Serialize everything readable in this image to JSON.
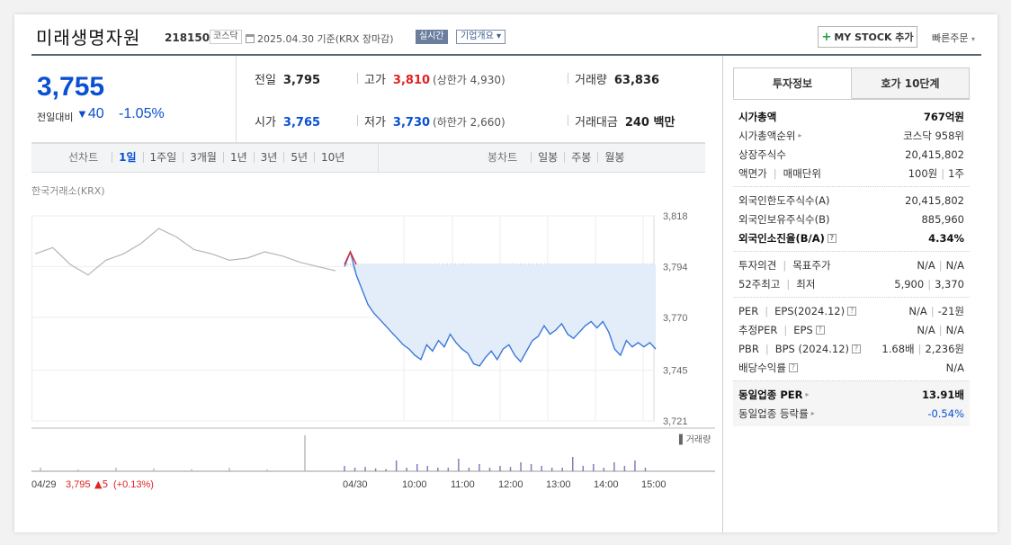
{
  "header": {
    "company": "미래생명자원",
    "code": "218150",
    "market_badge": "코스닥",
    "date_text": "2025.04.30 기준(KRX 장마감)",
    "realtime_badge": "실시간",
    "overview_button": "기업개요",
    "mystock_button": "MY STOCK 추가",
    "quick_order": "빠른주문"
  },
  "summary": {
    "price": "3,755",
    "change_label": "전일대비",
    "change": "40",
    "change_rate": "-1.05%",
    "prev_label": "전일",
    "prev": "3,795",
    "high_label": "고가",
    "high": "3,810",
    "upper_limit": "(상한가 4,930)",
    "volume_label": "거래량",
    "volume": "63,836",
    "open_label": "시가",
    "open": "3,765",
    "low_label": "저가",
    "low": "3,730",
    "lower_limit": "(하한가 2,660)",
    "amount_label": "거래대금",
    "amount": "240 백만"
  },
  "tabs": {
    "line_title": "선차트",
    "line_tabs": [
      "1일",
      "1주일",
      "3개월",
      "1년",
      "3년",
      "5년",
      "10년"
    ],
    "candle_title": "봉차트",
    "candle_tabs": [
      "일봉",
      "주봉",
      "월봉"
    ]
  },
  "chart": {
    "source": "한국거래소(KRX)",
    "volume_label": "거래량",
    "prev_day_label": "04/29",
    "prev_day_price": "3,795",
    "prev_day_change": "▲5",
    "prev_day_rate": "(+0.13%)"
  },
  "chart_data": {
    "type": "line",
    "reference_price": 3795,
    "ylim": [
      3721,
      3818
    ],
    "y_ticks": [
      "3,818",
      "3,794",
      "3,770",
      "3,745",
      "3,721"
    ],
    "x_ticks": [
      "04/29",
      "04/30",
      "10:00",
      "11:00",
      "12:00",
      "13:00",
      "14:00",
      "15:00"
    ],
    "colors": {
      "up": "#e02222",
      "down": "#3a78d8",
      "prev_day": "#b5b5b5",
      "fill": "#e3ecf9"
    },
    "series": [
      {
        "values": [
          3800,
          3803,
          3795,
          3790,
          3797,
          3800,
          3805,
          3812,
          3808,
          3802,
          3800,
          3797,
          3798,
          3801,
          3799,
          3796,
          3794,
          3792
        ]
      },
      {
        "values": [
          3794,
          3801,
          3790,
          3783,
          3776,
          3772,
          3769,
          3766,
          3763,
          3760,
          3757,
          3755,
          3752,
          3750,
          3757,
          3754,
          3759,
          3756,
          3762,
          3758,
          3755,
          3753,
          3748,
          3747,
          3751,
          3754,
          3750,
          3755,
          3757,
          3752,
          3749,
          3754,
          3759,
          3761,
          3766,
          3762,
          3764,
          3767,
          3762,
          3760,
          3763,
          3766,
          3768,
          3765,
          3768,
          3763,
          3755,
          3752,
          3759,
          3756,
          3758,
          3756,
          3758,
          3755
        ]
      }
    ],
    "volume": [
      0.1,
      0.05,
      0.1,
      0.08,
      0.06,
      0.1,
      0.05,
      1.0,
      0.15,
      0.1,
      0.12,
      0.08,
      0.06,
      0.3,
      0.1,
      0.2,
      0.15,
      0.1,
      0.1,
      0.35,
      0.1,
      0.2,
      0.1,
      0.15,
      0.12,
      0.25,
      0.2,
      0.15,
      0.1,
      0.1,
      0.4,
      0.15,
      0.2,
      0.1,
      0.25,
      0.15,
      0.3,
      0.1
    ]
  },
  "info": {
    "tabs": [
      "투자정보",
      "호가 10단계"
    ],
    "sections": [
      [
        {
          "k": "시가총액",
          "v": "767억원",
          "bold": true
        },
        {
          "k": "시가총액순위",
          "v": "코스닥 958위",
          "arrow": true
        },
        {
          "k": "상장주식수",
          "v": "20,415,802"
        },
        {
          "k": "액면가",
          "k2": "매매단위",
          "v": "100원",
          "v2": "1주"
        }
      ],
      [
        {
          "k": "외국인한도주식수(A)",
          "v": "20,415,802"
        },
        {
          "k": "외국인보유주식수(B)",
          "v": "885,960"
        },
        {
          "k": "외국인소진율(B/A)",
          "v": "4.34%",
          "bold": true,
          "q": true
        }
      ],
      [
        {
          "k": "투자의견",
          "k2": "목표주가",
          "v": "N/A",
          "v2": "N/A"
        },
        {
          "k": "52주최고",
          "k2": "최저",
          "v": "5,900",
          "v2": "3,370"
        }
      ],
      [
        {
          "k": "PER",
          "k2": "EPS(2024.12)",
          "v": "N/A",
          "v2": "-21원",
          "q": true
        },
        {
          "k": "추정PER",
          "k2": "EPS",
          "v": "N/A",
          "v2": "N/A",
          "q": true
        },
        {
          "k": "PBR",
          "k2": "BPS (2024.12)",
          "v": "1.68배",
          "v2": "2,236원",
          "q": true
        },
        {
          "k": "배당수익률",
          "v": "N/A",
          "q": true
        }
      ]
    ],
    "industry": [
      {
        "k": "동일업종 PER",
        "v": "13.91배",
        "bold": true,
        "arrow": true
      },
      {
        "k": "동일업종 등락률",
        "v": "-0.54%",
        "arrow": true,
        "neg": true
      }
    ]
  }
}
